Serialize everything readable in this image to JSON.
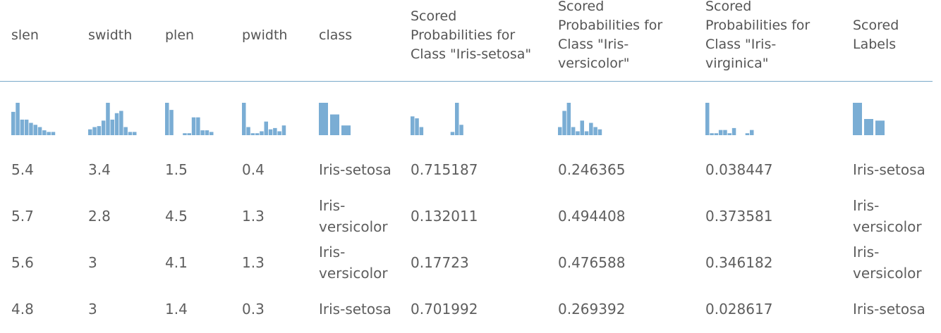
{
  "columns": [
    {
      "key": "slen",
      "label": "slen"
    },
    {
      "key": "swidth",
      "label": "swidth"
    },
    {
      "key": "plen",
      "label": "plen"
    },
    {
      "key": "pwidth",
      "label": "pwidth"
    },
    {
      "key": "class",
      "label": "class"
    },
    {
      "key": "p_setosa",
      "label": "Scored\nProbabilities for\nClass \"Iris-setosa\""
    },
    {
      "key": "p_versicolor",
      "label": "Scored\nProbabilities for\nClass \"Iris-\nversicolor\""
    },
    {
      "key": "p_virginica",
      "label": "Scored\nProbabilities for\nClass \"Iris-\nvirginica\""
    },
    {
      "key": "scored_labels",
      "label": "Scored\nLabels"
    }
  ],
  "histograms": {
    "slen": [
      0.72,
      1.0,
      0.48,
      0.48,
      0.38,
      0.32,
      0.25,
      0.15,
      0.1,
      0.1
    ],
    "swidth": [
      0.18,
      0.25,
      0.28,
      0.45,
      1.0,
      0.48,
      0.68,
      0.75,
      0.25,
      0.1,
      0.1
    ],
    "plen": [
      1.0,
      0.78,
      0.0,
      0.0,
      0.06,
      0.06,
      0.55,
      0.55,
      0.15,
      0.15,
      0.1
    ],
    "pwidth": [
      1.0,
      0.25,
      0.06,
      0.06,
      0.12,
      0.42,
      0.18,
      0.22,
      0.12,
      0.3
    ],
    "class": [
      1.0,
      0.64,
      0.3
    ],
    "p_setosa": [
      0.58,
      0.52,
      0.25,
      0.0,
      0.0,
      0.0,
      0.0,
      0.0,
      0.0,
      0.1,
      1.0,
      0.32
    ],
    "p_versicolor": [
      0.25,
      0.75,
      1.0,
      0.25,
      0.12,
      0.45,
      0.12,
      0.38,
      0.25,
      0.18
    ],
    "p_virginica": [
      1.0,
      0.06,
      0.06,
      0.16,
      0.16,
      0.06,
      0.22,
      0.0,
      0.0,
      0.06,
      0.16
    ],
    "scored_labels": [
      1.0,
      0.5,
      0.45
    ]
  },
  "rows": [
    [
      "5.4",
      "3.4",
      "1.5",
      "0.4",
      "Iris-setosa",
      "0.715187",
      "0.246365",
      "0.038447",
      "Iris-setosa"
    ],
    [
      "5.7",
      "2.8",
      "4.5",
      "1.3",
      "Iris-versicolor",
      "0.132011",
      "0.494408",
      "0.373581",
      "Iris-versicolor"
    ],
    [
      "5.6",
      "3",
      "4.1",
      "1.3",
      "Iris-versicolor",
      "0.17723",
      "0.476588",
      "0.346182",
      "Iris-versicolor"
    ],
    [
      "4.8",
      "3",
      "1.4",
      "0.3",
      "Iris-setosa",
      "0.701992",
      "0.269392",
      "0.028617",
      "Iris-setosa"
    ]
  ],
  "colors": {
    "bar": "#7aadd4",
    "divider": "#7aa9c9",
    "text": "#5e5e5e"
  }
}
